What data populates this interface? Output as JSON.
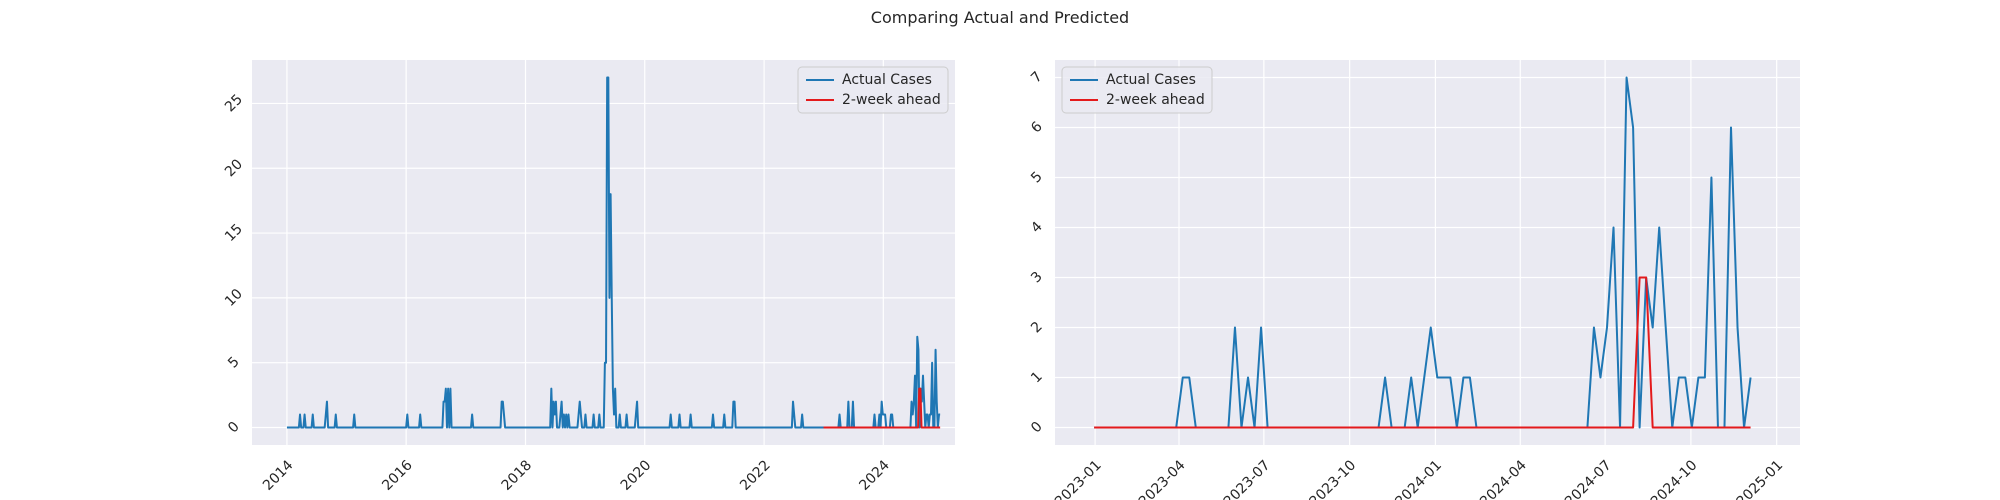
{
  "figure": {
    "title": "Comparing Actual and Predicted"
  },
  "colors": {
    "background": "#eaeaf2",
    "grid": "#ffffff",
    "actual": "#1f77b4",
    "predicted": "#e41a1c"
  },
  "chart_data": [
    {
      "type": "line",
      "title": "",
      "xlabel": "",
      "ylabel": "",
      "x_axis": "date",
      "xlim": [
        "2013-06-01",
        "2025-03-15"
      ],
      "ylim": [
        -1.35,
        28.35
      ],
      "x_ticks": [
        "2014-01-01",
        "2016-01-01",
        "2018-01-01",
        "2020-01-01",
        "2022-01-01",
        "2024-01-01"
      ],
      "x_tick_labels": [
        "2014",
        "2016",
        "2018",
        "2020",
        "2022",
        "2024"
      ],
      "y_ticks": [
        0,
        5,
        10,
        15,
        20,
        25
      ],
      "y_tick_labels": [
        "0",
        "5",
        "10",
        "15",
        "20",
        "25"
      ],
      "grid": true,
      "legend_position": "top-right",
      "series": [
        {
          "name": "Actual Cases",
          "color": "#1f77b4",
          "points": [
            [
              "2014-01-01",
              0
            ],
            [
              "2014-03-15",
              0
            ],
            [
              "2014-03-22",
              1
            ],
            [
              "2014-03-29",
              0
            ],
            [
              "2014-04-12",
              0
            ],
            [
              "2014-04-19",
              1
            ],
            [
              "2014-04-26",
              0
            ],
            [
              "2014-06-01",
              0
            ],
            [
              "2014-06-08",
              1
            ],
            [
              "2014-06-15",
              0
            ],
            [
              "2014-08-20",
              0
            ],
            [
              "2014-08-27",
              1
            ],
            [
              "2014-09-03",
              2
            ],
            [
              "2014-09-10",
              0
            ],
            [
              "2014-10-20",
              0
            ],
            [
              "2014-10-27",
              1
            ],
            [
              "2014-11-03",
              0
            ],
            [
              "2015-02-10",
              0
            ],
            [
              "2015-02-17",
              1
            ],
            [
              "2015-02-24",
              0
            ],
            [
              "2016-01-01",
              0
            ],
            [
              "2016-01-08",
              1
            ],
            [
              "2016-01-15",
              0
            ],
            [
              "2016-03-20",
              0
            ],
            [
              "2016-03-27",
              1
            ],
            [
              "2016-04-03",
              0
            ],
            [
              "2016-08-10",
              0
            ],
            [
              "2016-08-17",
              2
            ],
            [
              "2016-08-24",
              2
            ],
            [
              "2016-08-31",
              3
            ],
            [
              "2016-09-07",
              0
            ],
            [
              "2016-09-14",
              3
            ],
            [
              "2016-09-21",
              0
            ],
            [
              "2016-09-28",
              3
            ],
            [
              "2016-10-05",
              0
            ],
            [
              "2017-02-01",
              0
            ],
            [
              "2017-02-08",
              1
            ],
            [
              "2017-02-15",
              0
            ],
            [
              "2017-08-01",
              0
            ],
            [
              "2017-08-08",
              2
            ],
            [
              "2017-08-15",
              2
            ],
            [
              "2017-08-22",
              1
            ],
            [
              "2017-08-29",
              0
            ],
            [
              "2018-06-01",
              0
            ],
            [
              "2018-06-08",
              3
            ],
            [
              "2018-06-15",
              0
            ],
            [
              "2018-06-22",
              2
            ],
            [
              "2018-06-29",
              1
            ],
            [
              "2018-07-06",
              2
            ],
            [
              "2018-07-13",
              0
            ],
            [
              "2018-07-27",
              0
            ],
            [
              "2018-08-03",
              1
            ],
            [
              "2018-08-10",
              2
            ],
            [
              "2018-08-17",
              0
            ],
            [
              "2018-08-24",
              1
            ],
            [
              "2018-08-31",
              0
            ],
            [
              "2018-09-07",
              1
            ],
            [
              "2018-09-14",
              0
            ],
            [
              "2018-09-21",
              1
            ],
            [
              "2018-09-28",
              0
            ],
            [
              "2018-11-15",
              0
            ],
            [
              "2018-11-22",
              1
            ],
            [
              "2018-11-29",
              2
            ],
            [
              "2018-12-06",
              1
            ],
            [
              "2018-12-13",
              0
            ],
            [
              "2018-12-27",
              0
            ],
            [
              "2019-01-03",
              1
            ],
            [
              "2019-01-10",
              0
            ],
            [
              "2019-02-15",
              0
            ],
            [
              "2019-02-22",
              1
            ],
            [
              "2019-03-01",
              0
            ],
            [
              "2019-03-22",
              0
            ],
            [
              "2019-03-29",
              1
            ],
            [
              "2019-04-05",
              0
            ],
            [
              "2019-04-25",
              0
            ],
            [
              "2019-05-02",
              5
            ],
            [
              "2019-05-09",
              5
            ],
            [
              "2019-05-16",
              27
            ],
            [
              "2019-05-23",
              27
            ],
            [
              "2019-05-30",
              10
            ],
            [
              "2019-06-06",
              18
            ],
            [
              "2019-06-13",
              10
            ],
            [
              "2019-06-20",
              3
            ],
            [
              "2019-06-27",
              1
            ],
            [
              "2019-07-04",
              3
            ],
            [
              "2019-07-11",
              0
            ],
            [
              "2019-07-25",
              0
            ],
            [
              "2019-08-01",
              1
            ],
            [
              "2019-08-08",
              0
            ],
            [
              "2019-09-05",
              0
            ],
            [
              "2019-09-12",
              1
            ],
            [
              "2019-09-19",
              0
            ],
            [
              "2019-11-01",
              0
            ],
            [
              "2019-11-08",
              1
            ],
            [
              "2019-11-15",
              2
            ],
            [
              "2019-11-22",
              0
            ],
            [
              "2020-06-01",
              0
            ],
            [
              "2020-06-08",
              1
            ],
            [
              "2020-06-15",
              0
            ],
            [
              "2020-07-25",
              0
            ],
            [
              "2020-08-01",
              1
            ],
            [
              "2020-08-08",
              0
            ],
            [
              "2020-10-01",
              0
            ],
            [
              "2020-10-08",
              1
            ],
            [
              "2020-10-15",
              0
            ],
            [
              "2021-02-15",
              0
            ],
            [
              "2021-02-22",
              1
            ],
            [
              "2021-03-01",
              0
            ],
            [
              "2021-04-25",
              0
            ],
            [
              "2021-05-02",
              1
            ],
            [
              "2021-05-09",
              0
            ],
            [
              "2021-06-20",
              0
            ],
            [
              "2021-06-27",
              2
            ],
            [
              "2021-07-04",
              2
            ],
            [
              "2021-07-11",
              0
            ],
            [
              "2022-06-20",
              0
            ],
            [
              "2022-06-27",
              2
            ],
            [
              "2022-07-04",
              1
            ],
            [
              "2022-07-11",
              0
            ],
            [
              "2022-08-15",
              0
            ],
            [
              "2022-08-22",
              1
            ],
            [
              "2022-08-29",
              0
            ],
            [
              "2023-04-01",
              0
            ],
            [
              "2023-04-08",
              1
            ],
            [
              "2023-04-15",
              0
            ],
            [
              "2023-05-25",
              0
            ],
            [
              "2023-06-01",
              2
            ],
            [
              "2023-06-08",
              0
            ],
            [
              "2023-06-22",
              0
            ],
            [
              "2023-06-29",
              2
            ],
            [
              "2023-07-06",
              0
            ],
            [
              "2023-11-01",
              0
            ],
            [
              "2023-11-08",
              1
            ],
            [
              "2023-11-15",
              0
            ],
            [
              "2023-12-01",
              0
            ],
            [
              "2023-12-08",
              1
            ],
            [
              "2023-12-15",
              0
            ],
            [
              "2023-12-22",
              2
            ],
            [
              "2023-12-29",
              1
            ],
            [
              "2024-01-05",
              1
            ],
            [
              "2024-01-12",
              1
            ],
            [
              "2024-01-19",
              0
            ],
            [
              "2024-02-10",
              0
            ],
            [
              "2024-02-17",
              1
            ],
            [
              "2024-02-24",
              1
            ],
            [
              "2024-03-02",
              0
            ],
            [
              "2024-06-15",
              0
            ],
            [
              "2024-06-22",
              2
            ],
            [
              "2024-06-29",
              1
            ],
            [
              "2024-07-06",
              2
            ],
            [
              "2024-07-13",
              4
            ],
            [
              "2024-07-20",
              0
            ],
            [
              "2024-07-27",
              7
            ],
            [
              "2024-08-03",
              6
            ],
            [
              "2024-08-10",
              0
            ],
            [
              "2024-08-17",
              3
            ],
            [
              "2024-08-24",
              2
            ],
            [
              "2024-08-31",
              4
            ],
            [
              "2024-09-07",
              2
            ],
            [
              "2024-09-14",
              0
            ],
            [
              "2024-09-21",
              1
            ],
            [
              "2024-09-28",
              1
            ],
            [
              "2024-10-05",
              0
            ],
            [
              "2024-10-12",
              1
            ],
            [
              "2024-10-19",
              1
            ],
            [
              "2024-10-26",
              5
            ],
            [
              "2024-11-02",
              0
            ],
            [
              "2024-11-09",
              0
            ],
            [
              "2024-11-16",
              6
            ],
            [
              "2024-11-23",
              2
            ],
            [
              "2024-11-30",
              0
            ],
            [
              "2024-12-07",
              1
            ],
            [
              "2024-12-14",
              1
            ]
          ]
        },
        {
          "name": "2-week ahead",
          "color": "#e41a1c",
          "points": [
            [
              "2022-12-31",
              0
            ],
            [
              "2024-08-01",
              0
            ],
            [
              "2024-08-08",
              3
            ],
            [
              "2024-08-15",
              3
            ],
            [
              "2024-08-22",
              0
            ],
            [
              "2024-12-14",
              0
            ]
          ]
        }
      ]
    },
    {
      "type": "line",
      "title": "",
      "xlabel": "",
      "ylabel": "",
      "x_axis": "date",
      "xlim": [
        "2022-11-19",
        "2025-01-26"
      ],
      "ylim": [
        -0.35,
        7.35
      ],
      "x_ticks": [
        "2023-01-01",
        "2023-04-01",
        "2023-07-01",
        "2023-10-01",
        "2024-01-01",
        "2024-04-01",
        "2024-07-01",
        "2024-10-01",
        "2025-01-01"
      ],
      "x_tick_labels": [
        "2023-01",
        "2023-04",
        "2023-07",
        "2023-10",
        "2024-01",
        "2024-04",
        "2024-07",
        "2024-10",
        "2025-01"
      ],
      "y_ticks": [
        0,
        1,
        2,
        3,
        4,
        5,
        6,
        7
      ],
      "y_tick_labels": [
        "0",
        "1",
        "2",
        "3",
        "4",
        "5",
        "6",
        "7"
      ],
      "grid": true,
      "legend_position": "top-left",
      "series": [
        {
          "name": "Actual Cases",
          "color": "#1f77b4",
          "points": [
            [
              "2022-12-31",
              0
            ],
            [
              "2023-03-29",
              0
            ],
            [
              "2023-04-05",
              1
            ],
            [
              "2023-04-12",
              1
            ],
            [
              "2023-04-19",
              0
            ],
            [
              "2023-05-24",
              0
            ],
            [
              "2023-05-31",
              2
            ],
            [
              "2023-06-07",
              0
            ],
            [
              "2023-06-14",
              1
            ],
            [
              "2023-06-21",
              0
            ],
            [
              "2023-06-28",
              2
            ],
            [
              "2023-07-05",
              0
            ],
            [
              "2023-11-01",
              0
            ],
            [
              "2023-11-08",
              1
            ],
            [
              "2023-11-15",
              0
            ],
            [
              "2023-11-29",
              0
            ],
            [
              "2023-12-06",
              1
            ],
            [
              "2023-12-13",
              0
            ],
            [
              "2023-12-27",
              2
            ],
            [
              "2024-01-03",
              1
            ],
            [
              "2024-01-10",
              1
            ],
            [
              "2024-01-17",
              1
            ],
            [
              "2024-01-24",
              0
            ],
            [
              "2024-01-31",
              1
            ],
            [
              "2024-02-07",
              1
            ],
            [
              "2024-02-14",
              0
            ],
            [
              "2024-06-12",
              0
            ],
            [
              "2024-06-19",
              2
            ],
            [
              "2024-06-26",
              1
            ],
            [
              "2024-07-03",
              2
            ],
            [
              "2024-07-10",
              4
            ],
            [
              "2024-07-17",
              0
            ],
            [
              "2024-07-24",
              7
            ],
            [
              "2024-07-31",
              6
            ],
            [
              "2024-08-07",
              0
            ],
            [
              "2024-08-14",
              3
            ],
            [
              "2024-08-21",
              2
            ],
            [
              "2024-08-28",
              4
            ],
            [
              "2024-09-04",
              2
            ],
            [
              "2024-09-11",
              0
            ],
            [
              "2024-09-18",
              1
            ],
            [
              "2024-09-25",
              1
            ],
            [
              "2024-10-02",
              0
            ],
            [
              "2024-10-09",
              1
            ],
            [
              "2024-10-16",
              1
            ],
            [
              "2024-10-23",
              5
            ],
            [
              "2024-10-30",
              0
            ],
            [
              "2024-11-06",
              0
            ],
            [
              "2024-11-13",
              6
            ],
            [
              "2024-11-20",
              2
            ],
            [
              "2024-11-27",
              0
            ],
            [
              "2024-12-04",
              1
            ]
          ]
        },
        {
          "name": "2-week ahead",
          "color": "#e41a1c",
          "points": [
            [
              "2022-12-31",
              0
            ],
            [
              "2024-07-31",
              0
            ],
            [
              "2024-08-07",
              3
            ],
            [
              "2024-08-14",
              3
            ],
            [
              "2024-08-21",
              0
            ],
            [
              "2024-12-04",
              0
            ]
          ]
        }
      ]
    }
  ]
}
